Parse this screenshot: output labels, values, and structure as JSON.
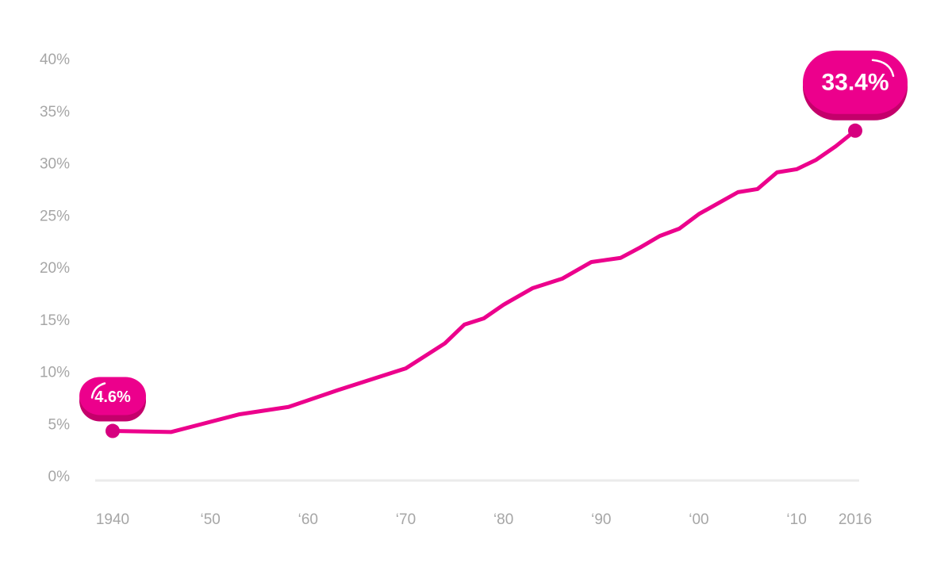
{
  "chart_data": {
    "type": "line",
    "x": [
      1940,
      1946,
      1953,
      1958,
      1963,
      1970,
      1974,
      1976,
      1978,
      1980,
      1983,
      1986,
      1989,
      1992,
      1994,
      1996,
      1998,
      2000,
      2004,
      2006,
      2008,
      2010,
      2012,
      2014,
      2016
    ],
    "series": [
      {
        "color": "#ec008c",
        "values": [
          4.6,
          4.5,
          6.2,
          6.9,
          8.5,
          10.6,
          13.0,
          14.8,
          15.4,
          16.7,
          18.3,
          19.2,
          20.8,
          21.2,
          22.2,
          23.3,
          24.0,
          25.4,
          27.5,
          27.8,
          29.4,
          29.7,
          30.6,
          31.9,
          33.4
        ],
        "value_labels": [
          "4.6%",
          null,
          null,
          null,
          null,
          null,
          null,
          null,
          null,
          null,
          null,
          null,
          null,
          null,
          null,
          null,
          null,
          null,
          null,
          null,
          null,
          null,
          null,
          null,
          "33.4%"
        ]
      }
    ],
    "xlim": [
      1940,
      2016
    ],
    "xticks": [
      1940,
      {
        "value": 1950,
        "label": "‘50"
      },
      {
        "value": 1960,
        "label": "‘60"
      },
      {
        "value": 1970,
        "label": "‘70"
      },
      {
        "value": 1980,
        "label": "‘80"
      },
      {
        "value": 1990,
        "label": "‘90"
      },
      {
        "value": 2000,
        "label": "‘00"
      },
      {
        "value": 2010,
        "label": "‘10"
      },
      2016
    ],
    "ylim": [
      0,
      40
    ],
    "yticks": [
      {
        "value": 0,
        "label": "0%"
      },
      {
        "value": 5,
        "label": "5%"
      },
      {
        "value": 10,
        "label": "10%"
      },
      {
        "value": 15,
        "label": "15%"
      },
      {
        "value": 20,
        "label": "20%"
      },
      {
        "value": 25,
        "label": "25%"
      },
      {
        "value": 30,
        "label": "30%"
      },
      {
        "value": 35,
        "label": "35%"
      },
      {
        "value": 40,
        "label": "40%"
      }
    ],
    "grid": false
  }
}
